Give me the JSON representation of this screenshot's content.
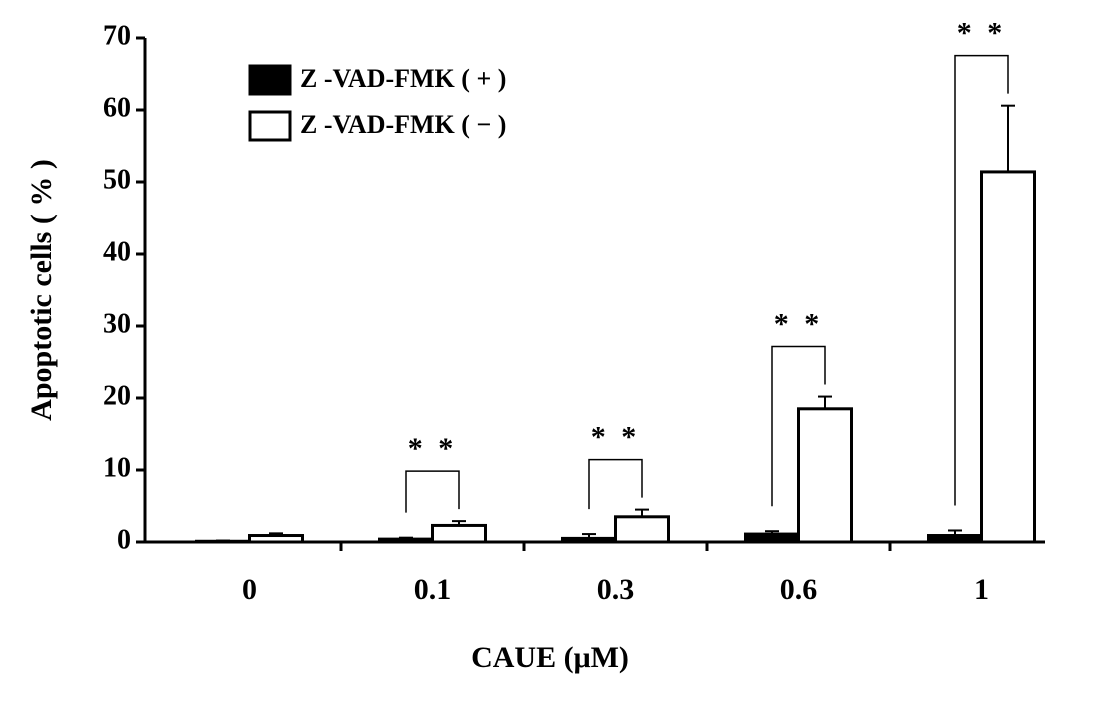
{
  "chart_data": {
    "type": "bar",
    "y_label": "Apoptotic  cells ( % )",
    "x_label": "CAUE  (μM)",
    "categories": [
      "0",
      "0.1",
      "0.3",
      "0.6",
      "1"
    ],
    "series": [
      {
        "name": "Z -VAD-FMK ( + )",
        "color": "#000000",
        "values": [
          0.1,
          0.4,
          0.5,
          1.1,
          0.9
        ],
        "errors": [
          0.1,
          0.2,
          0.6,
          0.4,
          0.7
        ]
      },
      {
        "name": "Z -VAD-FMK ( − )",
        "color": "#ffffff",
        "values": [
          0.9,
          2.3,
          3.5,
          18.5,
          51.4
        ],
        "errors": [
          0.3,
          0.6,
          1.0,
          1.7,
          9.2
        ]
      }
    ],
    "significance": [
      null,
      "* *",
      "* *",
      "* *",
      "* *"
    ],
    "ylim": [
      0,
      70
    ],
    "yticks": [
      0,
      10,
      20,
      30,
      40,
      50,
      60,
      70
    ],
    "legend": "upper-left",
    "grid": false
  }
}
